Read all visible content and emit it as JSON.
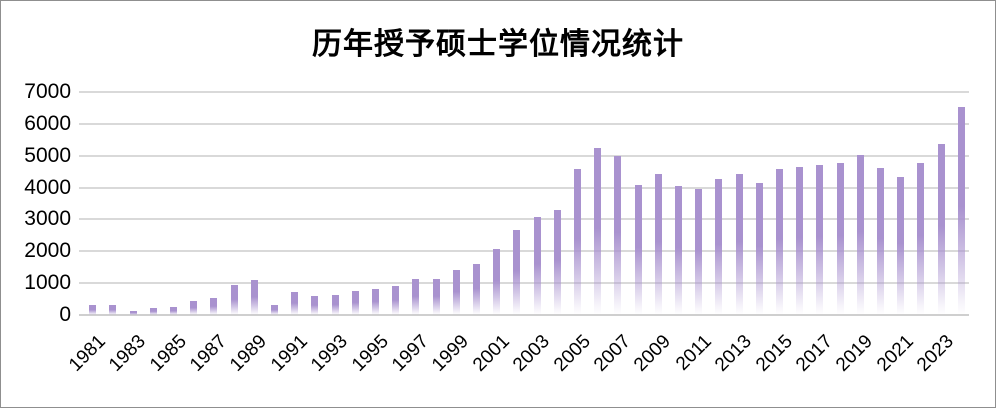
{
  "chart_data": {
    "type": "bar",
    "title": "历年授予硕士学位情况统计",
    "xlabel": "",
    "ylabel": "",
    "x": [
      1981,
      1982,
      1983,
      1984,
      1985,
      1986,
      1987,
      1988,
      1989,
      1990,
      1991,
      1992,
      1993,
      1994,
      1995,
      1996,
      1997,
      1998,
      1999,
      2000,
      2001,
      2002,
      2003,
      2004,
      2005,
      2006,
      2007,
      2008,
      2009,
      2010,
      2011,
      2012,
      2013,
      2014,
      2015,
      2016,
      2017,
      2018,
      2019,
      2020,
      2021,
      2022,
      2023,
      2024
    ],
    "values": [
      300,
      320,
      140,
      230,
      260,
      440,
      520,
      950,
      1100,
      310,
      710,
      610,
      640,
      750,
      820,
      910,
      1130,
      1140,
      1410,
      1600,
      2080,
      2660,
      3070,
      3290,
      4570,
      5230,
      4990,
      4070,
      4430,
      4040,
      3950,
      4280,
      4430,
      4150,
      4580,
      4640,
      4720,
      4760,
      5030,
      4620,
      4330,
      4770,
      5370,
      6540
    ],
    "x_tick_labels": [
      "1981",
      "1983",
      "1985",
      "1987",
      "1989",
      "1991",
      "1993",
      "1995",
      "1997",
      "1999",
      "2001",
      "2003",
      "2005",
      "2007",
      "2009",
      "2011",
      "2013",
      "2015",
      "2017",
      "2019",
      "2021",
      "2023"
    ],
    "y_ticks": [
      0,
      1000,
      2000,
      3000,
      4000,
      5000,
      6000,
      7000
    ],
    "ylim": [
      0,
      7000
    ],
    "grid": true,
    "legend": false,
    "x_tick_rotation": 45,
    "colors": {
      "bar_top": "#a992cf",
      "gridline": "#d9d9d9",
      "text": "#000000",
      "frame_border": "#8f8f8f",
      "background": "#ffffff"
    }
  }
}
